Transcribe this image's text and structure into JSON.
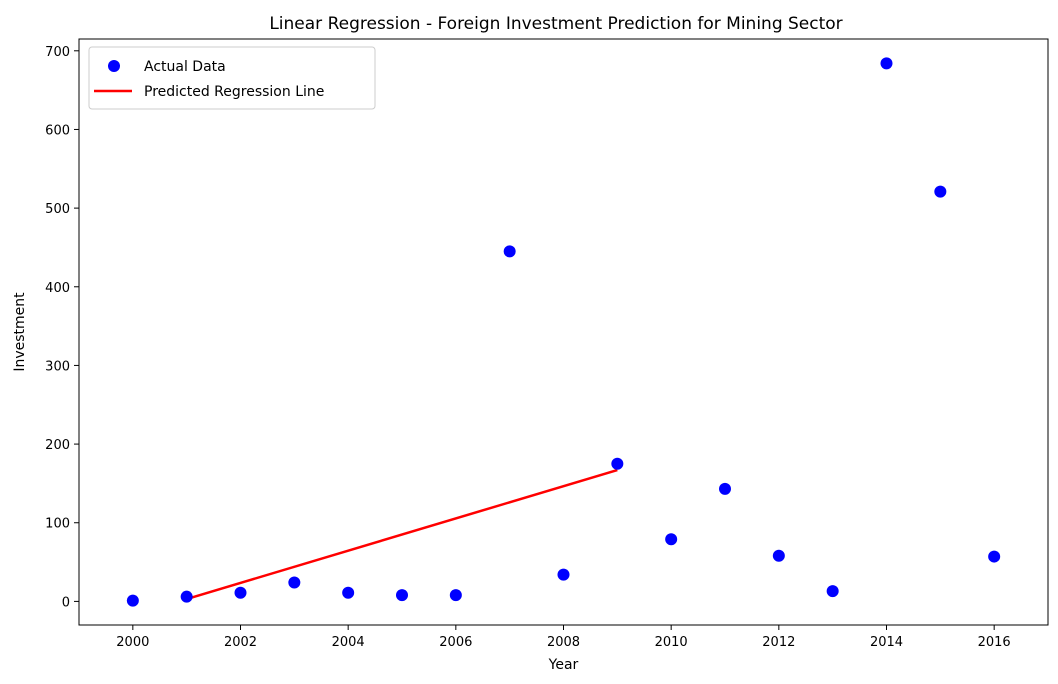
{
  "chart_data": {
    "type": "scatter",
    "title": "Linear Regression - Foreign Investment Prediction for Mining Sector",
    "xlabel": "Year",
    "ylabel": "Investment",
    "xlim": [
      1999,
      2017
    ],
    "ylim": [
      -30,
      715
    ],
    "xticks": [
      2000,
      2002,
      2004,
      2006,
      2008,
      2010,
      2012,
      2014,
      2016
    ],
    "yticks": [
      0,
      100,
      200,
      300,
      400,
      500,
      600,
      700
    ],
    "grid": false,
    "legend_position": "top-left",
    "series": [
      {
        "name": "Actual Data",
        "kind": "scatter",
        "color": "#0000ff",
        "points": [
          {
            "x": 2000,
            "y": 1
          },
          {
            "x": 2001,
            "y": 6
          },
          {
            "x": 2002,
            "y": 11
          },
          {
            "x": 2003,
            "y": 24
          },
          {
            "x": 2004,
            "y": 11
          },
          {
            "x": 2005,
            "y": 8
          },
          {
            "x": 2006,
            "y": 8
          },
          {
            "x": 2007,
            "y": 445
          },
          {
            "x": 2008,
            "y": 34
          },
          {
            "x": 2009,
            "y": 175
          },
          {
            "x": 2010,
            "y": 79
          },
          {
            "x": 2011,
            "y": 143
          },
          {
            "x": 2012,
            "y": 58
          },
          {
            "x": 2013,
            "y": 13
          },
          {
            "x": 2014,
            "y": 684
          },
          {
            "x": 2015,
            "y": 521
          },
          {
            "x": 2016,
            "y": 57
          }
        ]
      },
      {
        "name": "Predicted Regression Line",
        "kind": "line",
        "color": "#ff0000",
        "points": [
          {
            "x": 2001,
            "y": 3
          },
          {
            "x": 2009,
            "y": 167
          }
        ]
      }
    ]
  }
}
